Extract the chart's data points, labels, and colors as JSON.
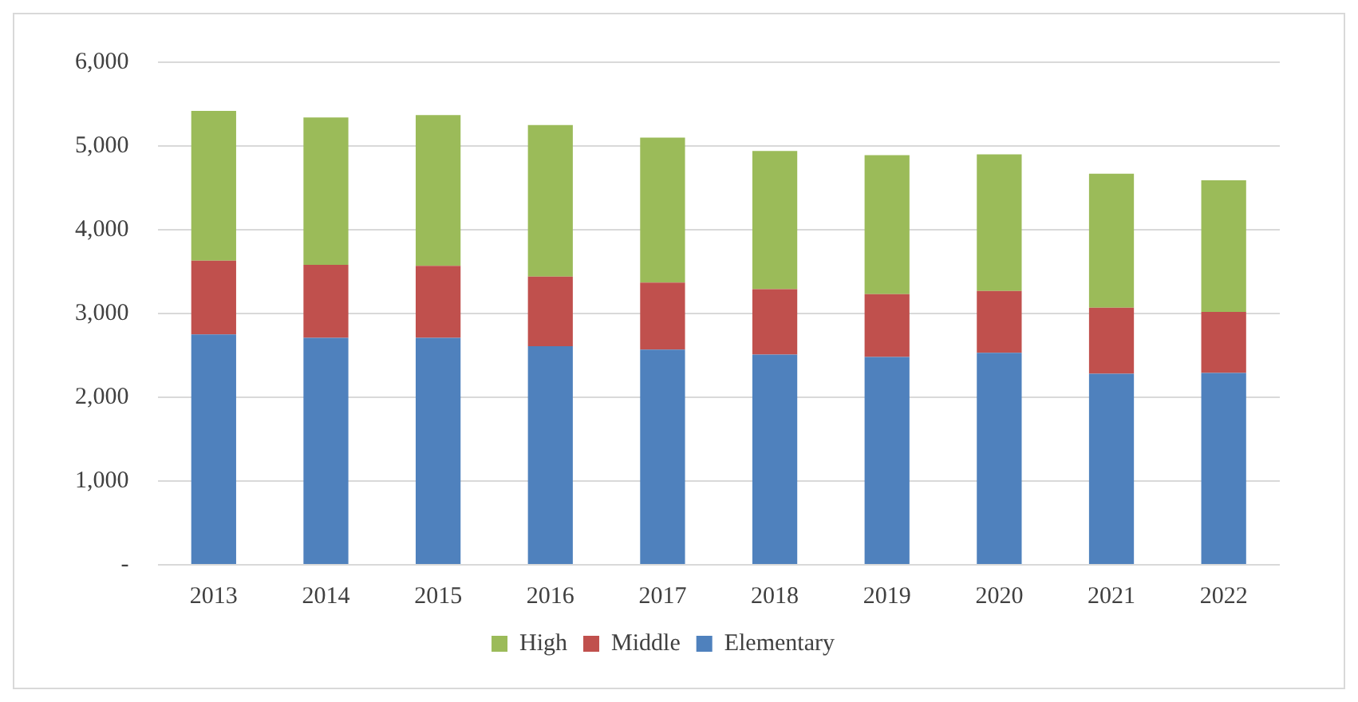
{
  "chart_data": {
    "type": "bar",
    "stacked": true,
    "categories": [
      "2013",
      "2014",
      "2015",
      "2016",
      "2017",
      "2018",
      "2019",
      "2020",
      "2021",
      "2022"
    ],
    "series": [
      {
        "name": "Elementary",
        "color": "#4f81bd",
        "values": [
          2750,
          2710,
          2710,
          2610,
          2570,
          2510,
          2480,
          2530,
          2280,
          2290
        ]
      },
      {
        "name": "Middle",
        "color": "#c0504d",
        "values": [
          880,
          870,
          860,
          830,
          800,
          780,
          750,
          740,
          790,
          730
        ]
      },
      {
        "name": "High",
        "color": "#9bbb59",
        "values": [
          1790,
          1760,
          1800,
          1810,
          1730,
          1650,
          1660,
          1630,
          1600,
          1570
        ]
      }
    ],
    "ylim": [
      0,
      6000
    ],
    "yticks": [
      {
        "value": 0,
        "label": "-"
      },
      {
        "value": 1000,
        "label": "1,000"
      },
      {
        "value": 2000,
        "label": "2,000"
      },
      {
        "value": 3000,
        "label": "3,000"
      },
      {
        "value": 4000,
        "label": "4,000"
      },
      {
        "value": 5000,
        "label": "5,000"
      },
      {
        "value": 6000,
        "label": "6,000"
      }
    ],
    "grid": "y",
    "legend": "bottom"
  }
}
